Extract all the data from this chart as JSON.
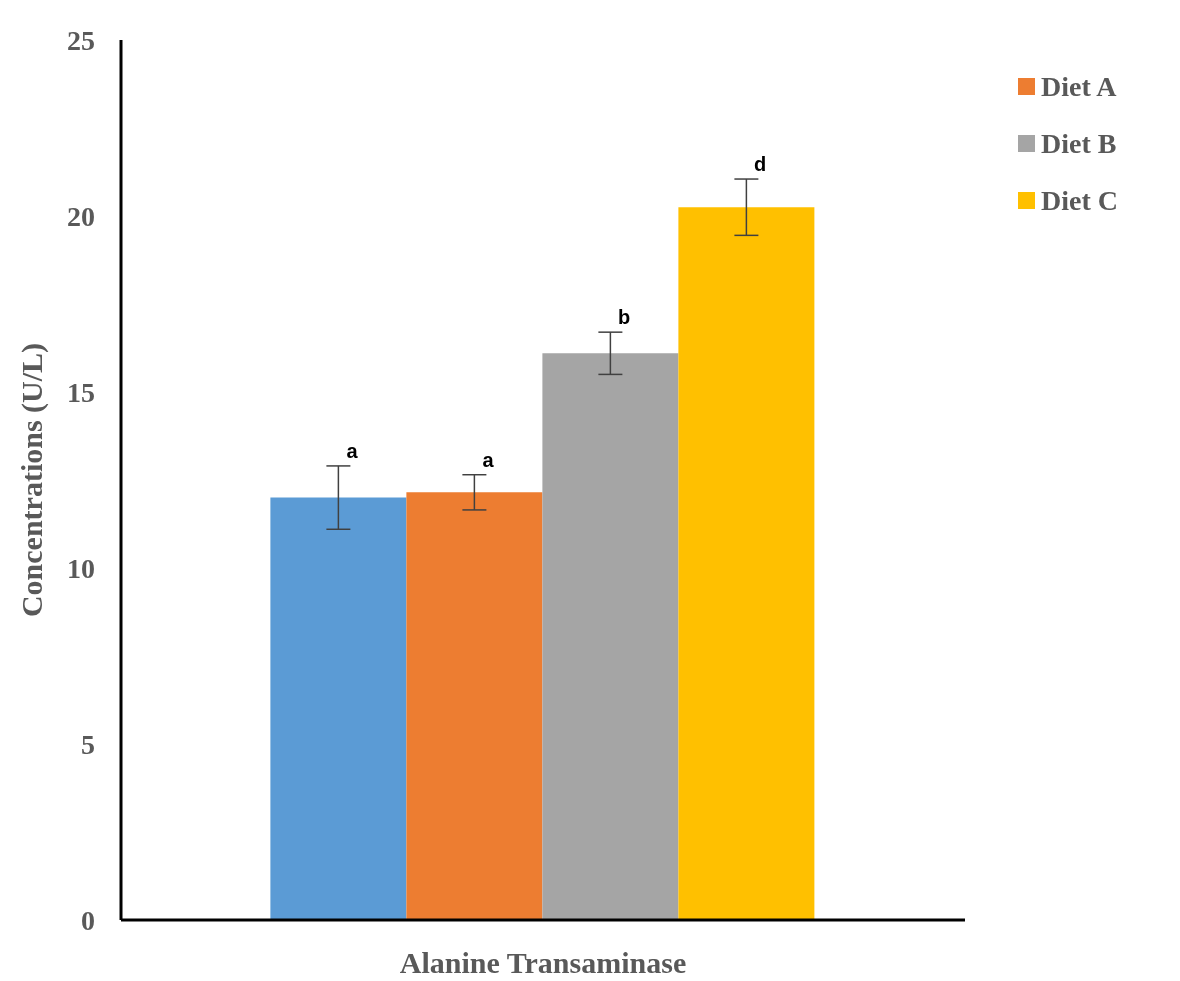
{
  "chart_data": {
    "type": "bar",
    "xlabel": "Alanine Transaminase",
    "ylabel": "Concentrations (U/L)",
    "categories": [
      null
    ],
    "series": [
      {
        "color": "#5b9bd5",
        "values": [
          12.0
        ],
        "errors": [
          0.9
        ],
        "value_labels": [
          "a"
        ]
      },
      {
        "name": "Diet A",
        "color": "#ed7d31",
        "values": [
          12.15
        ],
        "errors": [
          0.5
        ],
        "value_labels": [
          "a"
        ]
      },
      {
        "name": "Diet B",
        "color": "#a5a5a5",
        "values": [
          16.1
        ],
        "errors": [
          0.6
        ],
        "value_labels": [
          "b"
        ]
      },
      {
        "name": "Diet C",
        "color": "#ffc000",
        "values": [
          20.25
        ],
        "errors": [
          0.8
        ],
        "value_labels": [
          "d"
        ]
      }
    ],
    "ylim": [
      0,
      25
    ],
    "yticks": [
      0,
      5,
      10,
      15,
      20,
      25
    ],
    "grid": false,
    "legend": "top right"
  }
}
